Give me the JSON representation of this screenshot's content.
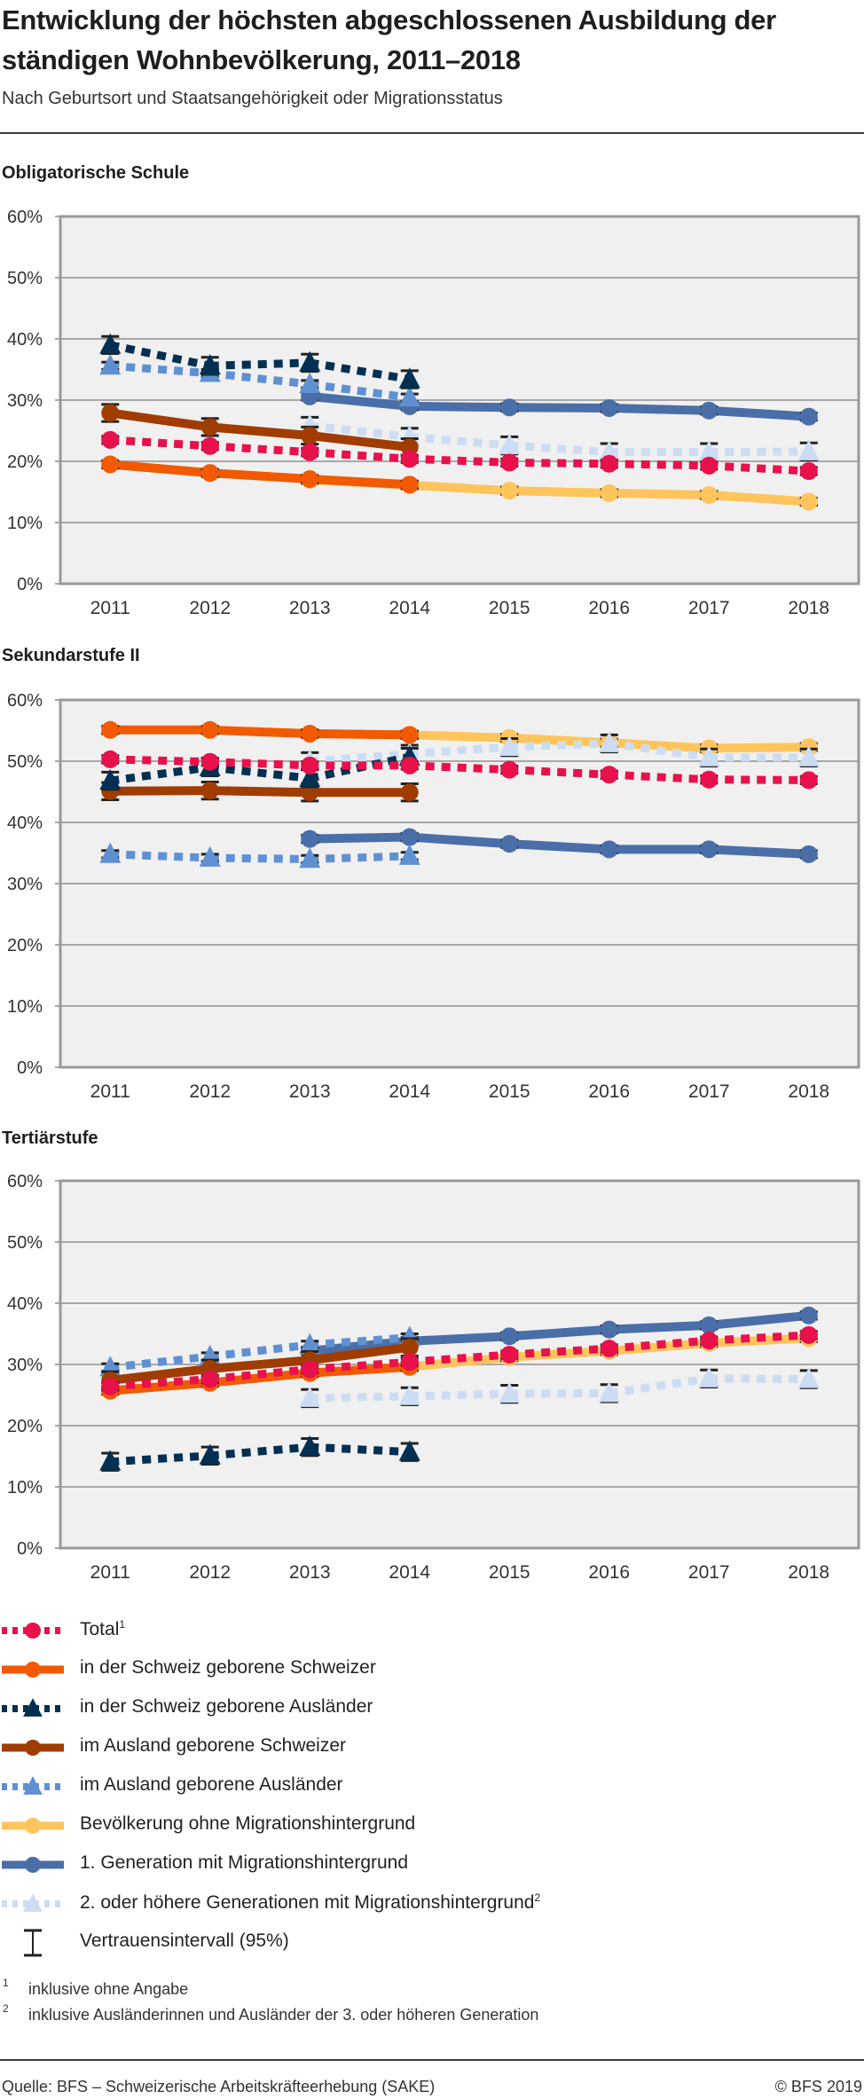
{
  "header": {
    "title": "Entwicklung der höchsten abgeschlossenen Ausbildung der ständigen Wohnbevölkerung, 2011–2018",
    "subtitle": "Nach Geburtsort und Staatsangehörigkeit oder Migrationsstatus"
  },
  "series_styles": [
    {
      "key": "total",
      "name": "Total",
      "sup": "1",
      "color": "#e8114b",
      "dash": true,
      "marker": "circle"
    },
    {
      "key": "ch_ch",
      "name": "in der Schweiz geborene Schweizer",
      "sup": "",
      "color": "#f15a00",
      "dash": false,
      "marker": "circle"
    },
    {
      "key": "ch_aus",
      "name": "in der Schweiz geborene Ausländer",
      "sup": "",
      "color": "#022f52",
      "dash": true,
      "marker": "triangle"
    },
    {
      "key": "aus_ch",
      "name": "im Ausland geborene Schweizer",
      "sup": "",
      "color": "#a03c00",
      "dash": false,
      "marker": "circle"
    },
    {
      "key": "aus_aus",
      "name": "im Ausland geborene Ausländer",
      "sup": "",
      "color": "#5f91d2",
      "dash": true,
      "marker": "triangle"
    },
    {
      "key": "ohne",
      "name": "Bevölkerung ohne Migrationshintergrund",
      "sup": "",
      "color": "#ffc55c",
      "dash": false,
      "marker": "circle"
    },
    {
      "key": "gen1",
      "name": "1. Generation mit Migrationshintergrund",
      "sup": "",
      "color": "#4a6ea8",
      "dash": false,
      "marker": "circle"
    },
    {
      "key": "gen2",
      "name": "2. oder höhere Generationen mit Migrationshintergrund",
      "sup": "2",
      "color": "#ccdcf3",
      "dash": true,
      "marker": "triangle"
    }
  ],
  "legend": {
    "ci_label": "Vertrauensintervall (95%)",
    "items": [
      {
        "label": "Total",
        "sup": "1"
      },
      {
        "label": "in der Schweiz geborene Schweizer",
        "sup": ""
      },
      {
        "label": "in der Schweiz geborene Ausländer",
        "sup": ""
      },
      {
        "label": "im Ausland geborene Schweizer",
        "sup": ""
      },
      {
        "label": "im Ausland geborene Ausländer",
        "sup": ""
      },
      {
        "label": "Bevölkerung ohne Migrationshintergrund",
        "sup": ""
      },
      {
        "label": "1. Generation mit Migrationshintergrund",
        "sup": ""
      },
      {
        "label": "2. oder höhere Generationen mit Migrationshintergrund",
        "sup": "2"
      }
    ]
  },
  "footnotes": [
    {
      "mark": "1",
      "text": "inklusive ohne Angabe"
    },
    {
      "mark": "2",
      "text": "inklusive Ausländerinnen und Ausländer der 3. oder höheren Generation"
    }
  ],
  "footer": {
    "source": "Quelle: BFS – Schweizerische Arbeitskräfteerhebung (SAKE)",
    "copyright": "© BFS 2019"
  },
  "chart_data": [
    {
      "type": "line",
      "title": "Obligatorische Schule",
      "x": [
        "2011",
        "2012",
        "2013",
        "2014",
        "2015",
        "2016",
        "2017",
        "2018"
      ],
      "yticks": [
        "0%",
        "10%",
        "20%",
        "30%",
        "40%",
        "50%",
        "60%"
      ],
      "ylim": [
        0,
        60
      ],
      "grid": true,
      "error_bars": "95% confidence interval",
      "series": [
        {
          "key": "ohne",
          "values": [
            null,
            null,
            17.0,
            16.1,
            15.2,
            14.8,
            14.5,
            13.4
          ]
        },
        {
          "key": "gen2",
          "values": [
            null,
            null,
            25.8,
            24.0,
            22.6,
            21.5,
            21.5,
            21.6
          ]
        },
        {
          "key": "gen1",
          "values": [
            null,
            null,
            30.6,
            29.0,
            28.8,
            28.7,
            28.3,
            27.3
          ]
        },
        {
          "key": "aus_aus",
          "values": [
            35.6,
            34.4,
            32.6,
            30.4,
            null,
            null,
            null,
            null
          ]
        },
        {
          "key": "aus_ch",
          "values": [
            27.9,
            25.6,
            24.2,
            22.3,
            null,
            null,
            null,
            null
          ]
        },
        {
          "key": "ch_aus",
          "values": [
            39.0,
            35.6,
            36.1,
            33.4,
            null,
            null,
            null,
            null
          ]
        },
        {
          "key": "ch_ch",
          "values": [
            19.5,
            18.1,
            17.1,
            16.2,
            null,
            null,
            null,
            null
          ]
        },
        {
          "key": "total",
          "values": [
            23.5,
            22.5,
            21.5,
            20.4,
            19.8,
            19.6,
            19.3,
            18.4
          ]
        }
      ]
    },
    {
      "type": "line",
      "title": "Sekundarstufe II",
      "x": [
        "2011",
        "2012",
        "2013",
        "2014",
        "2015",
        "2016",
        "2017",
        "2018"
      ],
      "yticks": [
        "0%",
        "10%",
        "20%",
        "30%",
        "40%",
        "50%",
        "60%"
      ],
      "ylim": [
        0,
        60
      ],
      "grid": true,
      "error_bars": "95% confidence interval",
      "series": [
        {
          "key": "ohne",
          "values": [
            null,
            null,
            54.5,
            54.3,
            53.8,
            53.0,
            52.1,
            52.3
          ]
        },
        {
          "key": "gen2",
          "values": [
            null,
            null,
            50.0,
            51.2,
            52.3,
            52.9,
            50.6,
            50.6
          ]
        },
        {
          "key": "gen1",
          "values": [
            null,
            null,
            37.3,
            37.6,
            36.5,
            35.6,
            35.6,
            34.8
          ]
        },
        {
          "key": "aus_aus",
          "values": [
            34.8,
            34.2,
            34.0,
            34.5,
            null,
            null,
            null,
            null
          ]
        },
        {
          "key": "aus_ch",
          "values": [
            45.1,
            45.2,
            44.9,
            44.9,
            null,
            null,
            null,
            null
          ]
        },
        {
          "key": "ch_aus",
          "values": [
            46.8,
            49.0,
            47.2,
            50.7,
            null,
            null,
            null,
            null
          ]
        },
        {
          "key": "ch_ch",
          "values": [
            55.1,
            55.1,
            54.5,
            54.3,
            null,
            null,
            null,
            null
          ]
        },
        {
          "key": "total",
          "values": [
            50.3,
            49.9,
            49.3,
            49.3,
            48.6,
            47.8,
            47.0,
            46.9
          ]
        }
      ]
    },
    {
      "type": "line",
      "title": "Tertiärstufe",
      "x": [
        "2011",
        "2012",
        "2013",
        "2014",
        "2015",
        "2016",
        "2017",
        "2018"
      ],
      "yticks": [
        "0%",
        "10%",
        "20%",
        "30%",
        "40%",
        "50%",
        "60%"
      ],
      "ylim": [
        0,
        60
      ],
      "grid": true,
      "error_bars": "95% confidence interval",
      "series": [
        {
          "key": "ohne",
          "values": [
            null,
            null,
            28.6,
            29.6,
            31.2,
            32.2,
            33.5,
            34.3
          ]
        },
        {
          "key": "gen2",
          "values": [
            null,
            null,
            24.5,
            24.8,
            25.2,
            25.3,
            27.7,
            27.6
          ]
        },
        {
          "key": "gen1",
          "values": [
            null,
            null,
            32.2,
            33.8,
            34.6,
            35.7,
            36.4,
            38.0
          ]
        },
        {
          "key": "aus_aus",
          "values": [
            29.5,
            31.3,
            33.2,
            34.4,
            null,
            null,
            null,
            null
          ]
        },
        {
          "key": "aus_ch",
          "values": [
            27.4,
            29.3,
            30.7,
            32.8,
            null,
            null,
            null,
            null
          ]
        },
        {
          "key": "ch_aus",
          "values": [
            14.1,
            15.1,
            16.5,
            15.7,
            null,
            null,
            null,
            null
          ]
        },
        {
          "key": "ch_ch",
          "values": [
            25.7,
            27.0,
            28.6,
            29.6,
            null,
            null,
            null,
            null
          ]
        },
        {
          "key": "total",
          "values": [
            26.4,
            27.6,
            29.2,
            30.4,
            31.6,
            32.6,
            33.9,
            34.8
          ]
        }
      ]
    }
  ]
}
